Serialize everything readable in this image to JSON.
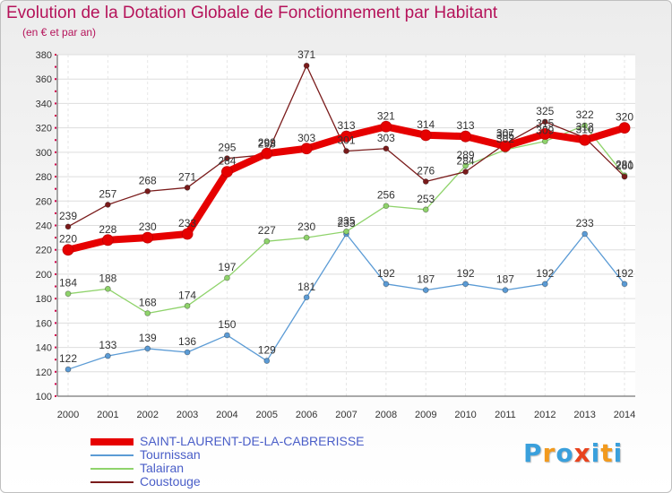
{
  "chart_data": {
    "type": "line",
    "title": "Evolution de la Dotation Globale de Fonctionnement par Habitant",
    "subtitle": "(en € et par an)",
    "xlabel": "",
    "ylabel": "",
    "ylim": [
      100,
      380
    ],
    "yticks": [
      100,
      120,
      140,
      160,
      180,
      200,
      220,
      240,
      260,
      280,
      300,
      320,
      340,
      360,
      380
    ],
    "grid": true,
    "legend_position": "bottom-left",
    "x": [
      "2000",
      "2001",
      "2002",
      "2003",
      "2004",
      "2005",
      "2006",
      "2007",
      "2008",
      "2009",
      "2010",
      "2011",
      "2012",
      "2013",
      "2014"
    ],
    "series": [
      {
        "name": "SAINT-LAURENT-DE-LA-CABRERISSE",
        "color": "#e60000",
        "values": [
          220,
          228,
          230,
          233,
          284,
          299,
          303,
          313,
          321,
          314,
          313,
          305,
          315,
          310,
          320
        ]
      },
      {
        "name": "Tournissan",
        "color": "#5b9bd5",
        "values": [
          122,
          133,
          139,
          136,
          150,
          129,
          181,
          233,
          192,
          187,
          192,
          187,
          192,
          233,
          192
        ]
      },
      {
        "name": "Talairan",
        "color": "#8fd36b",
        "values": [
          184,
          188,
          168,
          174,
          197,
          227,
          230,
          235,
          256,
          253,
          289,
          302,
          309,
          322,
          281
        ]
      },
      {
        "name": "Coustouge",
        "color": "#7a1b1b",
        "values": [
          239,
          257,
          268,
          271,
          295,
          298,
          371,
          301,
          303,
          276,
          284,
          307,
          325,
          312,
          280
        ]
      }
    ]
  },
  "logo": {
    "letters": [
      "P",
      "r",
      "o",
      "x",
      "i",
      "t",
      "i"
    ],
    "colors": [
      "#3aa0dc",
      "#f29a1e",
      "#3aa0dc",
      "#e8421d",
      "#3aa0dc",
      "#f29a1e",
      "#3aa0dc"
    ]
  }
}
